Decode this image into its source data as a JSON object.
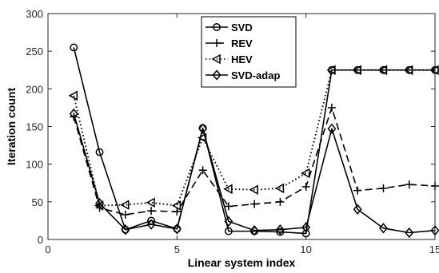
{
  "chart_data": {
    "type": "line",
    "title": "",
    "xlabel": "Linear system index",
    "ylabel": "Iteration count",
    "xlim": [
      0,
      15
    ],
    "ylim": [
      0,
      300
    ],
    "xticks": [
      0,
      5,
      10,
      15
    ],
    "yticks": [
      0,
      50,
      100,
      150,
      200,
      250,
      300
    ],
    "grid": false,
    "legend_position": "top-center",
    "x": [
      1,
      2,
      3,
      4,
      5,
      6,
      7,
      8,
      9,
      10,
      11,
      12,
      13,
      14,
      15
    ],
    "series": [
      {
        "name": "SVD",
        "marker": "circle",
        "line_style": "solid",
        "values": [
          255,
          116,
          13,
          25,
          14,
          148,
          11,
          11,
          10,
          8,
          225,
          225,
          225,
          225,
          225
        ]
      },
      {
        "name": "REV",
        "marker": "plus",
        "line_style": "dashed",
        "values": [
          163,
          42,
          33,
          38,
          37,
          92,
          44,
          47,
          50,
          70,
          175,
          65,
          68,
          73,
          71
        ]
      },
      {
        "name": "HEV",
        "marker": "triangle-left",
        "line_style": "dotted",
        "values": [
          191,
          45,
          46,
          49,
          45,
          135,
          67,
          66,
          68,
          88,
          225,
          225,
          225,
          225,
          225
        ]
      },
      {
        "name": "SVD-adap",
        "marker": "diamond",
        "line_style": "solid",
        "values": [
          167,
          48,
          13,
          20,
          14,
          147,
          24,
          12,
          13,
          16,
          147,
          40,
          15,
          9,
          12
        ]
      }
    ]
  }
}
